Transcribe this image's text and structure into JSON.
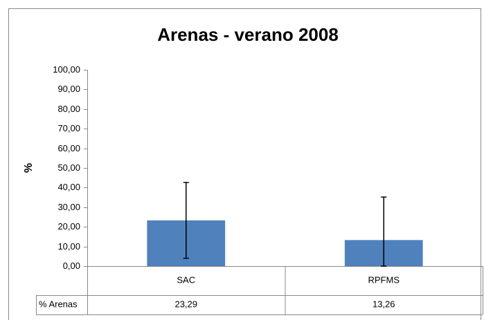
{
  "chart_data": {
    "type": "bar",
    "title": "Arenas - verano 2008",
    "ylabel": "%",
    "categories": [
      "SAC",
      "RPFMS"
    ],
    "series": [
      {
        "name": "% Arenas",
        "color": "#4f81bd",
        "values": [
          23.29,
          13.26
        ],
        "value_labels": [
          "23,29",
          "13,26"
        ],
        "errors": [
          19.3,
          21.9
        ]
      }
    ],
    "ylim": [
      0,
      100
    ],
    "yticks": [
      {
        "value": 0,
        "label": "0,00"
      },
      {
        "value": 10,
        "label": "10,00"
      },
      {
        "value": 20,
        "label": "20,00"
      },
      {
        "value": 30,
        "label": "30,00"
      },
      {
        "value": 40,
        "label": "40,00"
      },
      {
        "value": 50,
        "label": "50,00"
      },
      {
        "value": 60,
        "label": "60,00"
      },
      {
        "value": 70,
        "label": "70,00"
      },
      {
        "value": 80,
        "label": "80,00"
      },
      {
        "value": 90,
        "label": "90,00"
      },
      {
        "value": 100,
        "label": "100,00"
      }
    ],
    "grid": false
  }
}
